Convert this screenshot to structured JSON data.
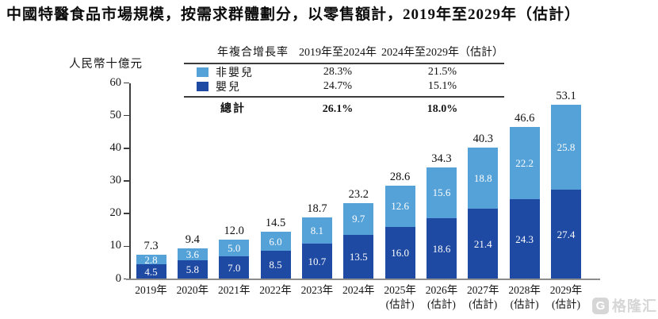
{
  "title": "中國特醫食品市場規模，按需求群體劃分，以零售額計，2019年至2029年（估計）",
  "y_axis_label": "人民幣十億元",
  "cagr_table": {
    "header": {
      "metric": "年複合增長率",
      "period1": "2019年至2024年",
      "period2": "2024年至2029年（估計）"
    },
    "rows": [
      {
        "label": "非嬰兒",
        "period1": "28.3%",
        "period2": "21.5%"
      },
      {
        "label": "嬰兒",
        "period1": "24.7%",
        "period2": "15.1%"
      }
    ],
    "total": {
      "label": "總計",
      "period1": "26.1%",
      "period2": "18.0%"
    }
  },
  "colors": {
    "infant": "#1f4aa3",
    "non_infant": "#55a2d8",
    "axis": "#3d3d3d",
    "baseline": "#8c8c8c"
  },
  "chart_data": {
    "type": "bar",
    "stacked": true,
    "title": "中國特醫食品市場規模，按需求群體劃分，以零售額計，2019年至2029年（估計）",
    "ylabel": "人民幣十億元",
    "ylim": [
      0,
      60
    ],
    "yticks": [
      0,
      10,
      20,
      30,
      40,
      50,
      60
    ],
    "grid": false,
    "legend_position": "top-table",
    "categories": [
      "2019年",
      "2020年",
      "2021年",
      "2022年",
      "2023年",
      "2024年",
      "2025年\n(估計)",
      "2026年\n(估計)",
      "2027年\n(估計)",
      "2028年\n(估計)",
      "2029年\n(估計)"
    ],
    "series": [
      {
        "name": "嬰兒",
        "color": "#1f4aa3",
        "values": [
          4.5,
          5.8,
          7.0,
          8.5,
          10.7,
          13.5,
          16.0,
          18.6,
          21.4,
          24.3,
          27.4
        ]
      },
      {
        "name": "非嬰兒",
        "color": "#55a2d8",
        "values": [
          2.8,
          3.6,
          5.0,
          6.0,
          8.1,
          9.7,
          12.6,
          15.6,
          18.8,
          22.2,
          25.8
        ]
      }
    ],
    "totals": [
      7.3,
      9.4,
      12.0,
      14.5,
      18.7,
      23.2,
      28.6,
      34.3,
      40.3,
      46.6,
      53.1
    ]
  },
  "watermark": {
    "text": "格隆汇",
    "icon": "gelonghui-logo",
    "icon_letter": "G"
  }
}
